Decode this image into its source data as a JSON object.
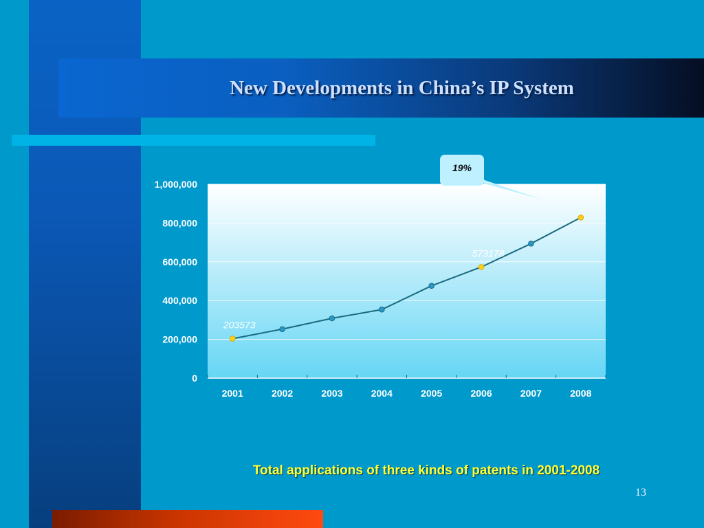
{
  "slide": {
    "title": "New Developments in China’s IP System",
    "caption": "Total applications of three kinds of patents in 2001-2008",
    "page_number": "13"
  },
  "colors": {
    "background": "#0099cc",
    "line": "#1a6a80",
    "marker": "#2a98c6",
    "highlight_marker": "#ffd21a",
    "caption": "#ffff33"
  },
  "callout": {
    "text": "19%"
  },
  "chart_data": {
    "type": "line",
    "title": "",
    "xlabel": "",
    "ylabel": "",
    "categories": [
      "2001",
      "2002",
      "2003",
      "2004",
      "2005",
      "2006",
      "2007",
      "2008"
    ],
    "series": [
      {
        "values": [
          203573,
          252631,
          308487,
          353807,
          476264,
          573178,
          693917,
          828328
        ]
      }
    ],
    "highlighted": [
      "2001",
      "2006",
      "2008"
    ],
    "data_labels": [
      {
        "category": "2001",
        "text": "203573"
      },
      {
        "category": "2006",
        "text": "573178"
      }
    ],
    "ylim": [
      0,
      1000000
    ],
    "yticks": [
      0,
      200000,
      400000,
      600000,
      800000,
      1000000
    ],
    "ytick_labels": [
      "0",
      "200,000",
      "400,000",
      "600,000",
      "800,000",
      "1,000,000"
    ],
    "grid": "horizontal",
    "legend": "none"
  }
}
